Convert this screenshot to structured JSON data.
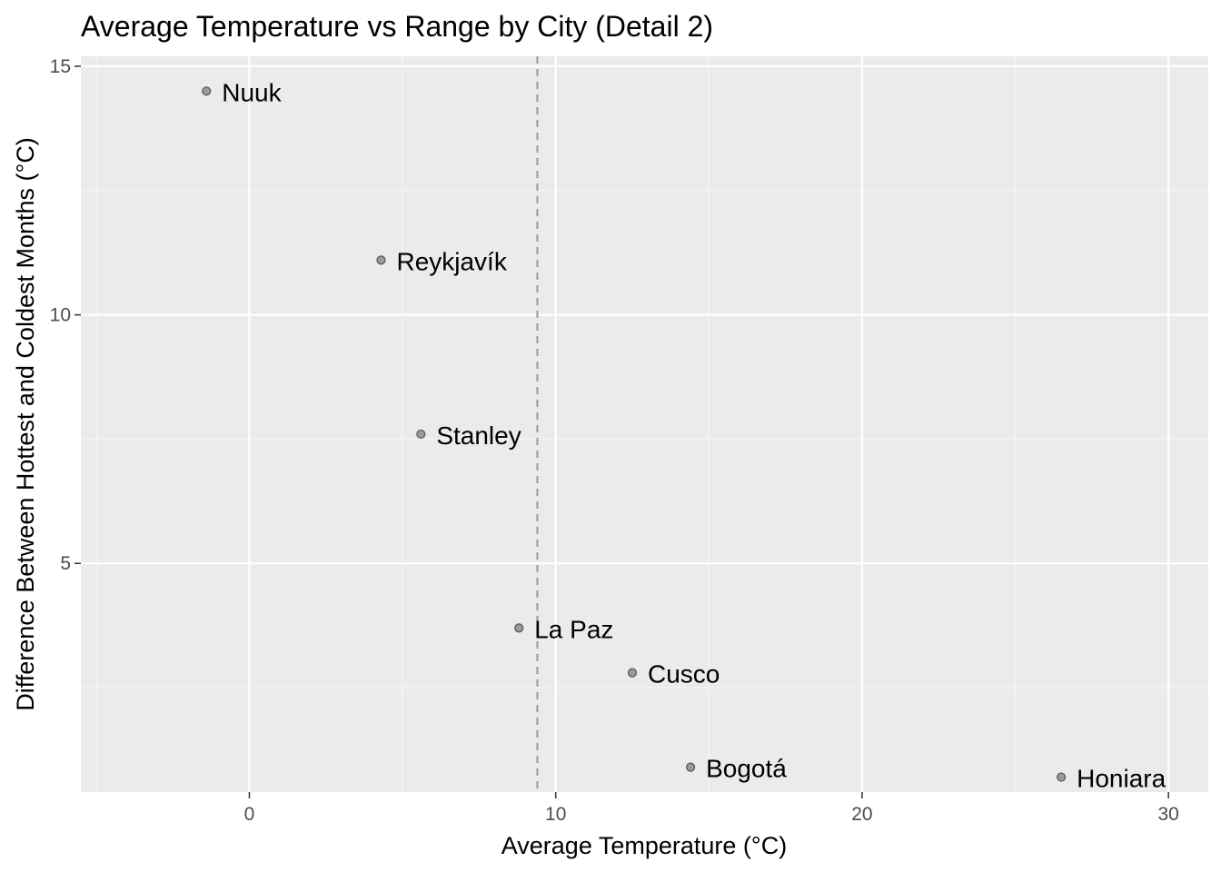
{
  "chart_data": {
    "type": "scatter",
    "title": "Average Temperature vs Range by City (Detail 2)",
    "xlabel": "Average Temperature (°C)",
    "ylabel": "Difference Between Hottest and Coldest Months (°C)",
    "xlim": [
      -5.5,
      31.3
    ],
    "ylim": [
      0.4,
      15.2
    ],
    "x_ticks": [
      0,
      10,
      20,
      30
    ],
    "y_ticks": [
      5,
      10,
      15
    ],
    "x_tick_labels": [
      "0",
      "10",
      "20",
      "30"
    ],
    "y_tick_labels": [
      "5",
      "10",
      "15"
    ],
    "grid": true,
    "reference_line": {
      "axis": "x",
      "value": 9.4,
      "style": "dashed"
    },
    "points": [
      {
        "label": "Nuuk",
        "x": -1.4,
        "y": 14.5
      },
      {
        "label": "Reykjavík",
        "x": 4.3,
        "y": 11.1
      },
      {
        "label": "Stanley",
        "x": 5.6,
        "y": 7.6
      },
      {
        "label": "La Paz",
        "x": 8.8,
        "y": 3.7
      },
      {
        "label": "Cusco",
        "x": 12.5,
        "y": 2.8
      },
      {
        "label": "Bogotá",
        "x": 14.4,
        "y": 0.9
      },
      {
        "label": "Honiara",
        "x": 26.5,
        "y": 0.7
      }
    ]
  },
  "colors": {
    "panel": "#ebebeb",
    "grid_major": "#ffffff",
    "grid_minor": "#f5f5f5",
    "point_fill": "#999999",
    "point_stroke": "#555555",
    "reference_line": "#999999",
    "tick": "#333333"
  }
}
